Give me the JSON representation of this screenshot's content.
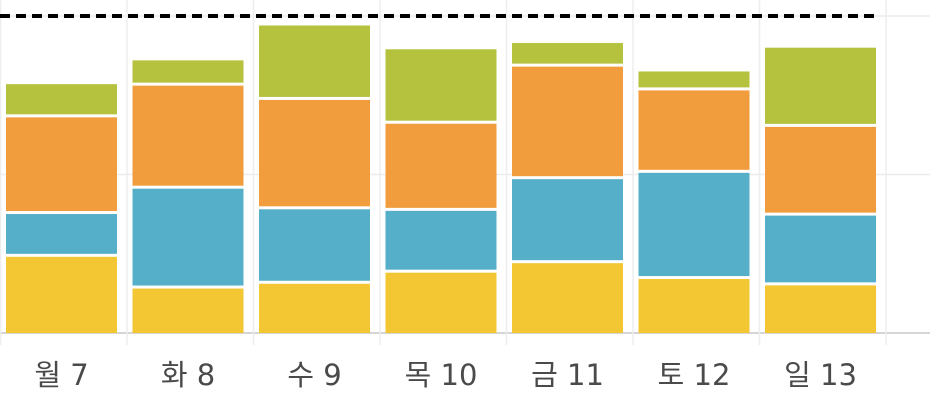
{
  "chart_data": {
    "type": "bar",
    "stacked": true,
    "categories": [
      "월 7",
      "화 8",
      "수 9",
      "목 10",
      "금 11",
      "토 12",
      "일 13"
    ],
    "series": [
      {
        "color": "#F3C633",
        "values": [
          4.9,
          2.9,
          3.2,
          3.9,
          4.5,
          3.5,
          3.1
        ]
      },
      {
        "color": "#56AFC9",
        "values": [
          2.7,
          6.3,
          4.7,
          3.9,
          5.3,
          6.7,
          4.4
        ]
      },
      {
        "color": "#F19C3D",
        "values": [
          6.1,
          6.5,
          6.9,
          5.5,
          7.1,
          5.2,
          5.6
        ]
      },
      {
        "color": "#B5C23D",
        "values": [
          2.0,
          1.5,
          4.6,
          4.6,
          1.4,
          1.1,
          4.9
        ]
      }
    ],
    "ylim": [
      0,
      20
    ],
    "goal_line": {
      "value": 20,
      "color": "#000000"
    },
    "grid": true,
    "legend": "none"
  }
}
